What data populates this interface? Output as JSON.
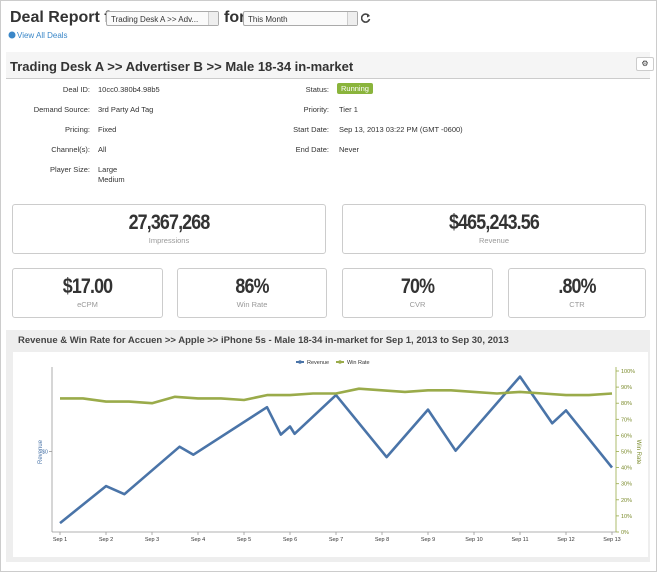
{
  "header": {
    "title": "Deal Report for",
    "desk_select": "Trading Desk A >> Adv...",
    "connector": "for",
    "period_select": "This Month",
    "link": "View All Deals"
  },
  "deal": {
    "title": "Trading Desk A >> Advertiser B >> Male 18-34 in-market",
    "left": [
      {
        "label": "Deal ID:",
        "values": [
          "10cc0.380b4.98b5"
        ]
      },
      {
        "label": "Demand Source:",
        "values": [
          "3rd Party Ad Tag"
        ]
      },
      {
        "label": "Pricing:",
        "values": [
          "Fixed"
        ]
      },
      {
        "label": "Channel(s):",
        "values": [
          "All"
        ]
      },
      {
        "label": "Player Size:",
        "values": [
          "Large",
          "Medium"
        ]
      }
    ],
    "right": [
      {
        "label": "Status:",
        "values": [
          "Running"
        ]
      },
      {
        "label": "Priority:",
        "values": [
          "Tier 1"
        ]
      },
      {
        "label": "Start Date:",
        "values": [
          "Sep 13, 2013 03:22 PM (GMT -0600)"
        ]
      },
      {
        "label": "End Date:",
        "values": [
          "Never"
        ]
      }
    ]
  },
  "metrics": [
    {
      "value": "27,367,268",
      "label": "Impressions"
    },
    {
      "value": "$465,243.56",
      "label": "Revenue"
    },
    {
      "value": "$17.00",
      "label": "eCPM"
    },
    {
      "value": "86%",
      "label": "Win Rate"
    },
    {
      "value": "70%",
      "label": "CVR"
    },
    {
      "value": ".80%",
      "label": "CTR"
    }
  ],
  "chart_data": {
    "type": "line",
    "title": "Revenue & Win Rate for Accuen >> Apple >> iPhone 5s - Male 18-34 in-market for Sep 1, 2013 to Sep 30, 2013",
    "y_label": "Revenue",
    "y2_label": "Win Rate",
    "xlim": [
      1,
      13
    ],
    "xticks": [
      {
        "value": 1,
        "label": "Sep 1"
      },
      {
        "value": 2,
        "label": "Sep 2"
      },
      {
        "value": 3,
        "label": "Sep 3"
      },
      {
        "value": 4,
        "label": "Sep 4"
      },
      {
        "value": 5,
        "label": "Sep 5"
      },
      {
        "value": 6,
        "label": "Sep 6"
      },
      {
        "value": 7,
        "label": "Sep 7"
      },
      {
        "value": 8,
        "label": "Sep 8"
      },
      {
        "value": 9,
        "label": "Sep 9"
      },
      {
        "value": 10,
        "label": "Sep 10"
      },
      {
        "value": 11,
        "label": "Sep 11"
      },
      {
        "value": 12,
        "label": "Sep 12"
      },
      {
        "value": 13,
        "label": "Sep 13"
      }
    ],
    "ylim": [
      -1,
      1
    ],
    "yticks": [
      {
        "value": 0,
        "label": "$0"
      }
    ],
    "y2lim": [
      0,
      100
    ],
    "y2ticks": [
      {
        "value": 0,
        "label": "0%"
      },
      {
        "value": 10,
        "label": "10%"
      },
      {
        "value": 20,
        "label": "20%"
      },
      {
        "value": 30,
        "label": "30%"
      },
      {
        "value": 40,
        "label": "40%"
      },
      {
        "value": 50,
        "label": "50%"
      },
      {
        "value": 60,
        "label": "60%"
      },
      {
        "value": 70,
        "label": "70%"
      },
      {
        "value": 80,
        "label": "80%"
      },
      {
        "value": 90,
        "label": "90%"
      },
      {
        "value": 100,
        "label": "100%"
      }
    ],
    "series": [
      {
        "name": "Revenue",
        "color": "#4a74a8",
        "x": [
          1,
          2,
          2.4,
          3.6,
          3.9,
          5.5,
          5.8,
          6,
          6.1,
          7,
          8.1,
          9,
          9.6,
          11,
          11.7,
          12,
          13
        ],
        "values": [
          -0.89,
          -0.43,
          -0.53,
          0.06,
          -0.04,
          0.55,
          0.21,
          0.31,
          0.22,
          0.7,
          -0.07,
          0.52,
          0.01,
          0.93,
          0.35,
          0.51,
          -0.2
        ]
      },
      {
        "name": "Win Rate",
        "color": "#9aab4a",
        "axis": "y2",
        "x": [
          1,
          1.5,
          2,
          2.5,
          3,
          3.5,
          4,
          4.5,
          5,
          5.5,
          6,
          6.5,
          7,
          7.5,
          8,
          8.5,
          9,
          9.5,
          10,
          10.5,
          11,
          11.5,
          12,
          12.5,
          13
        ],
        "values": [
          83,
          83,
          81,
          81,
          80,
          84,
          83,
          83,
          82,
          85,
          85,
          86,
          86,
          89,
          88,
          87,
          88,
          88,
          87,
          86,
          87,
          86,
          85,
          85,
          86
        ]
      }
    ]
  }
}
